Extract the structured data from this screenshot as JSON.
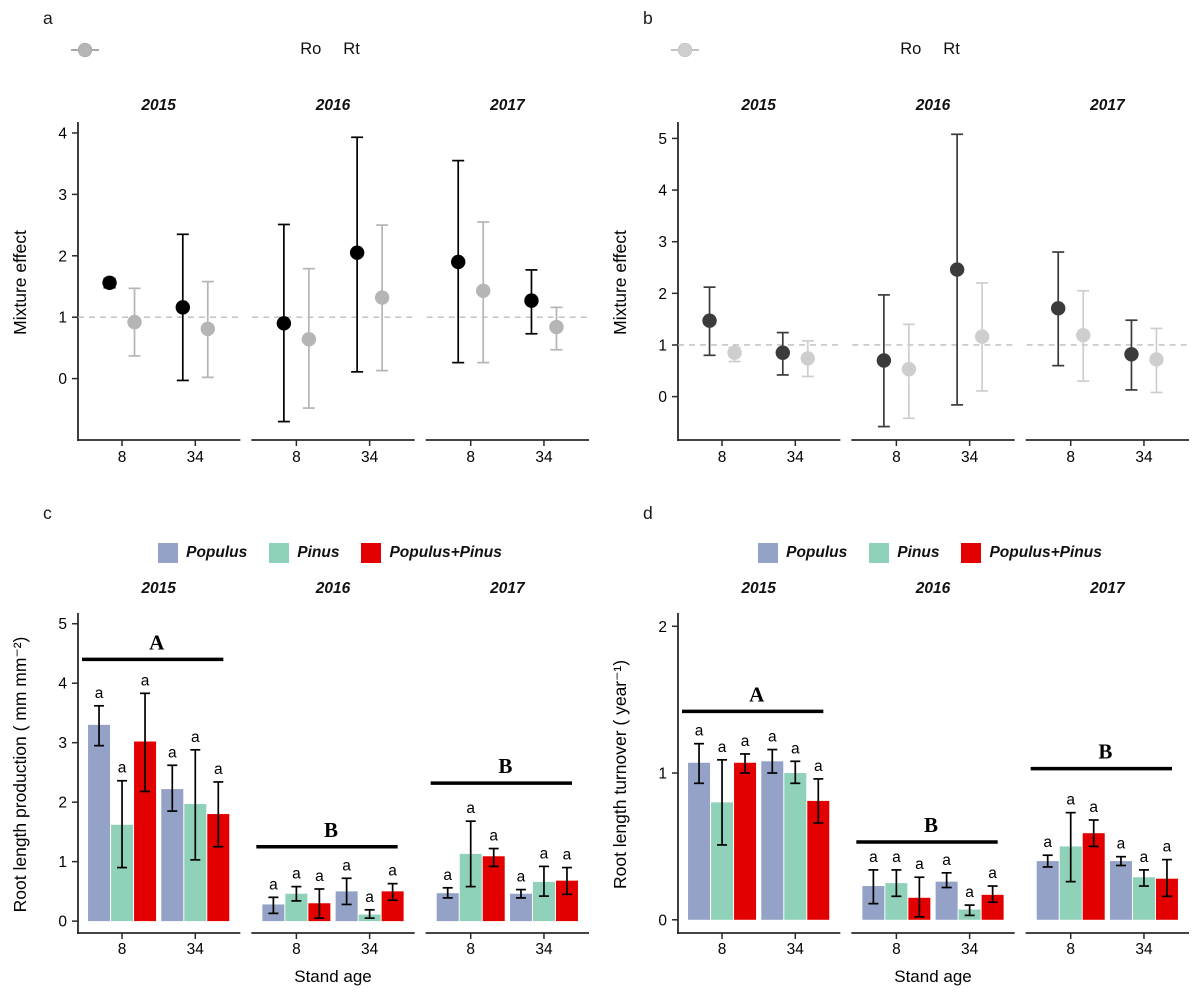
{
  "background": "#ffffff",
  "chart_data": {
    "type": "bar",
    "description": "Four-panel faceted figure: panels a-b are point-range plots of mixture effect by year and stand age; panels c-d are grouped bar charts with error bars.",
    "panels": [
      {
        "label": "a",
        "kind": "pointrange",
        "ylab": "Mixture effect",
        "refline": 1,
        "yticks": [
          0,
          1,
          2,
          3,
          4
        ],
        "ylim": [
          -1.0,
          4.13
        ],
        "series": [
          {
            "name": "Ro",
            "color": "#000000"
          },
          {
            "name": "Rt",
            "color": "#b5b5b5"
          }
        ],
        "facets": [
          {
            "title": "2015",
            "groups": [
              {
                "x": "8",
                "values": [
                  {
                    "y": 1.56,
                    "lo": 1.48,
                    "hi": 1.63
                  },
                  {
                    "y": 0.92,
                    "lo": 0.37,
                    "hi": 1.47
                  }
                ]
              },
              {
                "x": "34",
                "values": [
                  {
                    "y": 1.16,
                    "lo": -0.03,
                    "hi": 2.35
                  },
                  {
                    "y": 0.81,
                    "lo": 0.02,
                    "hi": 1.58
                  }
                ]
              }
            ]
          },
          {
            "title": "2016",
            "groups": [
              {
                "x": "8",
                "values": [
                  {
                    "y": 0.9,
                    "lo": -0.7,
                    "hi": 2.51
                  },
                  {
                    "y": 0.64,
                    "lo": -0.48,
                    "hi": 1.79
                  }
                ]
              },
              {
                "x": "34",
                "values": [
                  {
                    "y": 2.05,
                    "lo": 0.11,
                    "hi": 3.93
                  },
                  {
                    "y": 1.32,
                    "lo": 0.13,
                    "hi": 2.5
                  }
                ]
              }
            ]
          },
          {
            "title": "2017",
            "groups": [
              {
                "x": "8",
                "values": [
                  {
                    "y": 1.9,
                    "lo": 0.26,
                    "hi": 3.55
                  },
                  {
                    "y": 1.43,
                    "lo": 0.26,
                    "hi": 2.55
                  }
                ]
              },
              {
                "x": "34",
                "values": [
                  {
                    "y": 1.27,
                    "lo": 0.73,
                    "hi": 1.77
                  },
                  {
                    "y": 0.84,
                    "lo": 0.47,
                    "hi": 1.16
                  }
                ]
              }
            ]
          }
        ]
      },
      {
        "label": "b",
        "kind": "pointrange",
        "ylab": "Mixture effect",
        "refline": 1,
        "yticks": [
          0,
          1,
          2,
          3,
          4,
          5
        ],
        "ylim": [
          -0.84,
          5.26
        ],
        "series": [
          {
            "name": "Ro",
            "color": "#3b3b3b"
          },
          {
            "name": "Rt",
            "color": "#cecece"
          }
        ],
        "facets": [
          {
            "title": "2015",
            "groups": [
              {
                "x": "8",
                "values": [
                  {
                    "y": 1.47,
                    "lo": 0.8,
                    "hi": 2.12
                  },
                  {
                    "y": 0.85,
                    "lo": 0.68,
                    "hi": 0.95
                  }
                ]
              },
              {
                "x": "34",
                "values": [
                  {
                    "y": 0.85,
                    "lo": 0.42,
                    "hi": 1.24
                  },
                  {
                    "y": 0.74,
                    "lo": 0.39,
                    "hi": 1.08
                  }
                ]
              }
            ]
          },
          {
            "title": "2016",
            "groups": [
              {
                "x": "8",
                "values": [
                  {
                    "y": 0.7,
                    "lo": -0.58,
                    "hi": 1.97
                  },
                  {
                    "y": 0.53,
                    "lo": -0.42,
                    "hi": 1.4
                  }
                ]
              },
              {
                "x": "34",
                "values": [
                  {
                    "y": 2.46,
                    "lo": -0.16,
                    "hi": 5.08
                  },
                  {
                    "y": 1.16,
                    "lo": 0.11,
                    "hi": 2.2
                  }
                ]
              }
            ]
          },
          {
            "title": "2017",
            "groups": [
              {
                "x": "8",
                "values": [
                  {
                    "y": 1.71,
                    "lo": 0.6,
                    "hi": 2.8
                  },
                  {
                    "y": 1.19,
                    "lo": 0.3,
                    "hi": 2.05
                  }
                ]
              },
              {
                "x": "34",
                "values": [
                  {
                    "y": 0.82,
                    "lo": 0.13,
                    "hi": 1.48
                  },
                  {
                    "y": 0.72,
                    "lo": 0.08,
                    "hi": 1.32
                  }
                ]
              }
            ]
          }
        ]
      },
      {
        "label": "c",
        "kind": "bars",
        "ylab": "Root length production ( mm mm⁻²)",
        "xlab": "Stand age",
        "yticks": [
          0,
          1,
          2,
          3,
          4,
          5
        ],
        "ylim": [
          -0.2,
          5.13
        ],
        "series": [
          {
            "name": "Populus",
            "color": "#93a2c6"
          },
          {
            "name": "Pinus",
            "color": "#90d1ba"
          },
          {
            "name": "Populus+Pinus",
            "color": "#e30000"
          }
        ],
        "facets": [
          {
            "title": "2015",
            "sig": {
              "letter": "A",
              "y": 4.4
            },
            "groups": [
              {
                "x": "8",
                "values": [
                  {
                    "y": 3.3,
                    "lo": 2.95,
                    "hi": 3.62,
                    "letter": "a"
                  },
                  {
                    "y": 1.62,
                    "lo": 0.9,
                    "hi": 2.36,
                    "letter": "a"
                  },
                  {
                    "y": 3.02,
                    "lo": 2.18,
                    "hi": 3.83,
                    "letter": "a"
                  }
                ]
              },
              {
                "x": "34",
                "values": [
                  {
                    "y": 2.22,
                    "lo": 1.85,
                    "hi": 2.62,
                    "letter": "a"
                  },
                  {
                    "y": 1.97,
                    "lo": 1.03,
                    "hi": 2.88,
                    "letter": "a"
                  },
                  {
                    "y": 1.8,
                    "lo": 1.25,
                    "hi": 2.34,
                    "letter": "a"
                  }
                ]
              }
            ]
          },
          {
            "title": "2016",
            "sig": {
              "letter": "B",
              "y": 1.25
            },
            "groups": [
              {
                "x": "8",
                "values": [
                  {
                    "y": 0.28,
                    "lo": 0.13,
                    "hi": 0.4,
                    "letter": "a"
                  },
                  {
                    "y": 0.46,
                    "lo": 0.34,
                    "hi": 0.58,
                    "letter": "a"
                  },
                  {
                    "y": 0.3,
                    "lo": 0.05,
                    "hi": 0.54,
                    "letter": "a"
                  }
                ]
              },
              {
                "x": "34",
                "values": [
                  {
                    "y": 0.5,
                    "lo": 0.28,
                    "hi": 0.72,
                    "letter": "a"
                  },
                  {
                    "y": 0.11,
                    "lo": 0.05,
                    "hi": 0.19,
                    "letter": "a"
                  },
                  {
                    "y": 0.5,
                    "lo": 0.35,
                    "hi": 0.63,
                    "letter": "a"
                  }
                ]
              }
            ]
          },
          {
            "title": "2017",
            "sig": {
              "letter": "B",
              "y": 2.32
            },
            "groups": [
              {
                "x": "8",
                "values": [
                  {
                    "y": 0.47,
                    "lo": 0.39,
                    "hi": 0.56,
                    "letter": "a"
                  },
                  {
                    "y": 1.13,
                    "lo": 0.58,
                    "hi": 1.68,
                    "letter": "a"
                  },
                  {
                    "y": 1.09,
                    "lo": 0.92,
                    "hi": 1.22,
                    "letter": "a"
                  }
                ]
              },
              {
                "x": "34",
                "values": [
                  {
                    "y": 0.46,
                    "lo": 0.39,
                    "hi": 0.53,
                    "letter": "a"
                  },
                  {
                    "y": 0.66,
                    "lo": 0.42,
                    "hi": 0.92,
                    "letter": "a"
                  },
                  {
                    "y": 0.68,
                    "lo": 0.45,
                    "hi": 0.9,
                    "letter": "a"
                  }
                ]
              }
            ]
          }
        ]
      },
      {
        "label": "d",
        "kind": "bars",
        "ylab": "Root length turnover ( year⁻¹)",
        "xlab": "Stand age",
        "yticks": [
          0,
          1,
          2
        ],
        "ylim": [
          -0.09,
          2.07
        ],
        "series": [
          {
            "name": "Populus",
            "color": "#93a2c6"
          },
          {
            "name": "Pinus",
            "color": "#90d1ba"
          },
          {
            "name": "Populus+Pinus",
            "color": "#e30000"
          }
        ],
        "facets": [
          {
            "title": "2015",
            "sig": {
              "letter": "A",
              "y": 1.42
            },
            "groups": [
              {
                "x": "8",
                "values": [
                  {
                    "y": 1.07,
                    "lo": 0.93,
                    "hi": 1.2,
                    "letter": "a"
                  },
                  {
                    "y": 0.8,
                    "lo": 0.51,
                    "hi": 1.09,
                    "letter": "a"
                  },
                  {
                    "y": 1.07,
                    "lo": 1.0,
                    "hi": 1.13,
                    "letter": "a"
                  }
                ]
              },
              {
                "x": "34",
                "values": [
                  {
                    "y": 1.08,
                    "lo": 1.0,
                    "hi": 1.16,
                    "letter": "a"
                  },
                  {
                    "y": 1.0,
                    "lo": 0.93,
                    "hi": 1.08,
                    "letter": "a"
                  },
                  {
                    "y": 0.81,
                    "lo": 0.66,
                    "hi": 0.96,
                    "letter": "a"
                  }
                ]
              }
            ]
          },
          {
            "title": "2016",
            "sig": {
              "letter": "B",
              "y": 0.53
            },
            "groups": [
              {
                "x": "8",
                "values": [
                  {
                    "y": 0.23,
                    "lo": 0.11,
                    "hi": 0.34,
                    "letter": "a"
                  },
                  {
                    "y": 0.25,
                    "lo": 0.16,
                    "hi": 0.34,
                    "letter": "a"
                  },
                  {
                    "y": 0.15,
                    "lo": 0.02,
                    "hi": 0.29,
                    "letter": "a"
                  }
                ]
              },
              {
                "x": "34",
                "values": [
                  {
                    "y": 0.26,
                    "lo": 0.22,
                    "hi": 0.32,
                    "letter": "a"
                  },
                  {
                    "y": 0.07,
                    "lo": 0.03,
                    "hi": 0.1,
                    "letter": "a"
                  },
                  {
                    "y": 0.17,
                    "lo": 0.12,
                    "hi": 0.23,
                    "letter": "a"
                  }
                ]
              }
            ]
          },
          {
            "title": "2017",
            "sig": {
              "letter": "B",
              "y": 1.03
            },
            "groups": [
              {
                "x": "8",
                "values": [
                  {
                    "y": 0.4,
                    "lo": 0.36,
                    "hi": 0.44,
                    "letter": "a"
                  },
                  {
                    "y": 0.5,
                    "lo": 0.26,
                    "hi": 0.73,
                    "letter": "a"
                  },
                  {
                    "y": 0.59,
                    "lo": 0.5,
                    "hi": 0.68,
                    "letter": "a"
                  }
                ]
              },
              {
                "x": "34",
                "values": [
                  {
                    "y": 0.4,
                    "lo": 0.37,
                    "hi": 0.43,
                    "letter": "a"
                  },
                  {
                    "y": 0.29,
                    "lo": 0.23,
                    "hi": 0.34,
                    "letter": "a"
                  },
                  {
                    "y": 0.28,
                    "lo": 0.16,
                    "hi": 0.41,
                    "letter": "a"
                  }
                ]
              }
            ]
          }
        ]
      }
    ],
    "style": {
      "axis_color": "#2a2a2a",
      "refline_color": "#bcbcbc",
      "errorbar_color_bars": "#000000"
    }
  }
}
